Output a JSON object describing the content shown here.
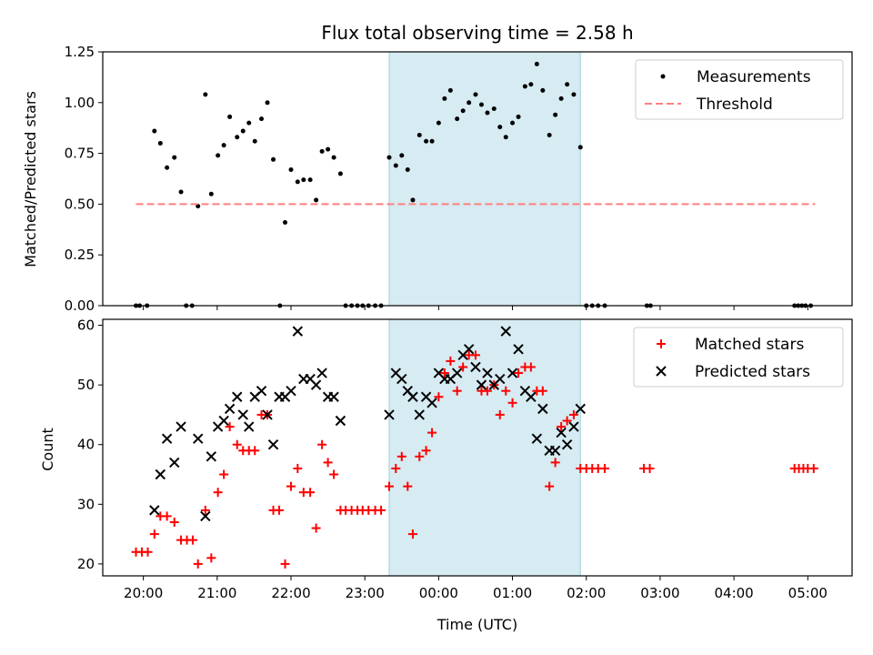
{
  "chart_data": [
    {
      "type": "scatter",
      "title": "Flux total observing time = 2.58 h",
      "xlabel": "",
      "ylabel": "Matched/Predicted stars",
      "xlim": [
        -0.55,
        9.6
      ],
      "ylim": [
        0,
        1.25
      ],
      "yticks": [
        0.0,
        0.25,
        0.5,
        0.75,
        1.0,
        1.25
      ],
      "ytick_labels": [
        "0.00",
        "0.25",
        "0.50",
        "0.75",
        "1.00",
        "1.25"
      ],
      "shaded_span": {
        "x0": 3.33,
        "x1": 5.92,
        "color": "#add8e6"
      },
      "legend": {
        "position": "upper right",
        "entries": [
          "Measurements",
          "Threshold"
        ]
      },
      "series": [
        {
          "name": "Measurements",
          "marker": "dot",
          "color": "#000000",
          "points": [
            [
              -0.1,
              0
            ],
            [
              -0.05,
              0
            ],
            [
              0.05,
              0
            ],
            [
              0.15,
              0.86
            ],
            [
              0.23,
              0.8
            ],
            [
              0.32,
              0.68
            ],
            [
              0.42,
              0.73
            ],
            [
              0.51,
              0.56
            ],
            [
              0.58,
              0
            ],
            [
              0.66,
              0
            ],
            [
              0.74,
              0.49
            ],
            [
              0.84,
              1.04
            ],
            [
              0.92,
              0.55
            ],
            [
              1.01,
              0.74
            ],
            [
              1.09,
              0.79
            ],
            [
              1.17,
              0.93
            ],
            [
              1.27,
              0.83
            ],
            [
              1.35,
              0.86
            ],
            [
              1.43,
              0.9
            ],
            [
              1.51,
              0.81
            ],
            [
              1.6,
              0.92
            ],
            [
              1.68,
              1.0
            ],
            [
              1.76,
              0.72
            ],
            [
              1.85,
              0
            ],
            [
              1.92,
              0.41
            ],
            [
              2.0,
              0.67
            ],
            [
              2.09,
              0.61
            ],
            [
              2.17,
              0.62
            ],
            [
              2.26,
              0.62
            ],
            [
              2.34,
              0.52
            ],
            [
              2.42,
              0.76
            ],
            [
              2.5,
              0.77
            ],
            [
              2.58,
              0.73
            ],
            [
              2.67,
              0.65
            ],
            [
              2.74,
              0
            ],
            [
              2.82,
              0
            ],
            [
              2.9,
              0
            ],
            [
              2.97,
              0
            ],
            [
              3.05,
              0
            ],
            [
              3.14,
              0
            ],
            [
              3.22,
              0
            ],
            [
              3.33,
              0.73
            ],
            [
              3.42,
              0.69
            ],
            [
              3.5,
              0.74
            ],
            [
              3.58,
              0.67
            ],
            [
              3.65,
              0.52
            ],
            [
              3.74,
              0.84
            ],
            [
              3.83,
              0.81
            ],
            [
              3.91,
              0.81
            ],
            [
              4.0,
              0.9
            ],
            [
              4.08,
              1.02
            ],
            [
              4.16,
              1.06
            ],
            [
              4.25,
              0.92
            ],
            [
              4.33,
              0.96
            ],
            [
              4.41,
              1.0
            ],
            [
              4.5,
              1.04
            ],
            [
              4.58,
              0.99
            ],
            [
              4.66,
              0.95
            ],
            [
              4.75,
              0.97
            ],
            [
              4.83,
              0.88
            ],
            [
              4.91,
              0.83
            ],
            [
              5.0,
              0.9
            ],
            [
              5.08,
              0.93
            ],
            [
              5.17,
              1.08
            ],
            [
              5.25,
              1.09
            ],
            [
              5.33,
              1.19
            ],
            [
              5.41,
              1.06
            ],
            [
              5.5,
              0.84
            ],
            [
              5.58,
              0.94
            ],
            [
              5.66,
              1.02
            ],
            [
              5.74,
              1.09
            ],
            [
              5.83,
              1.04
            ],
            [
              5.92,
              0.78
            ],
            [
              6.0,
              0
            ],
            [
              6.08,
              0
            ],
            [
              6.16,
              0
            ],
            [
              6.25,
              0
            ],
            [
              6.82,
              0
            ],
            [
              6.87,
              0
            ],
            [
              8.82,
              0
            ],
            [
              8.87,
              0
            ],
            [
              8.92,
              0
            ],
            [
              8.97,
              0
            ],
            [
              9.04,
              0
            ]
          ]
        },
        {
          "name": "Threshold",
          "marker": "dashed-line",
          "color": "#ff7f7f",
          "points": [
            [
              -0.1,
              0.5
            ],
            [
              9.1,
              0.5
            ]
          ]
        }
      ]
    },
    {
      "type": "scatter",
      "title": "",
      "xlabel": "Time (UTC)",
      "ylabel": "Count",
      "xlim": [
        -0.55,
        9.6
      ],
      "ylim": [
        18,
        61
      ],
      "yticks": [
        20,
        30,
        40,
        50,
        60
      ],
      "ytick_labels": [
        "20",
        "30",
        "40",
        "50",
        "60"
      ],
      "xticks": [
        0,
        1,
        2,
        3,
        4,
        5,
        6,
        7,
        8,
        9
      ],
      "xtick_labels": [
        "20:00",
        "21:00",
        "22:00",
        "23:00",
        "00:00",
        "01:00",
        "02:00",
        "03:00",
        "04:00",
        "05:00"
      ],
      "shaded_span": {
        "x0": 3.33,
        "x1": 5.92,
        "color": "#add8e6"
      },
      "legend": {
        "position": "upper right",
        "entries": [
          "Matched stars",
          "Predicted stars"
        ]
      },
      "series": [
        {
          "name": "Matched stars",
          "marker": "plus",
          "color": "#ff0000",
          "points": [
            [
              -0.1,
              22
            ],
            [
              -0.02,
              22
            ],
            [
              0.06,
              22
            ],
            [
              0.15,
              25
            ],
            [
              0.23,
              28
            ],
            [
              0.32,
              28
            ],
            [
              0.42,
              27
            ],
            [
              0.51,
              24
            ],
            [
              0.59,
              24
            ],
            [
              0.67,
              24
            ],
            [
              0.74,
              20
            ],
            [
              0.84,
              29
            ],
            [
              0.92,
              21
            ],
            [
              1.01,
              32
            ],
            [
              1.09,
              35
            ],
            [
              1.17,
              43
            ],
            [
              1.27,
              40
            ],
            [
              1.35,
              39
            ],
            [
              1.43,
              39
            ],
            [
              1.51,
              39
            ],
            [
              1.6,
              45
            ],
            [
              1.68,
              45
            ],
            [
              1.76,
              29
            ],
            [
              1.84,
              29
            ],
            [
              1.92,
              20
            ],
            [
              2.0,
              33
            ],
            [
              2.09,
              36
            ],
            [
              2.17,
              32
            ],
            [
              2.26,
              32
            ],
            [
              2.34,
              26
            ],
            [
              2.42,
              40
            ],
            [
              2.5,
              37
            ],
            [
              2.58,
              35
            ],
            [
              2.67,
              29
            ],
            [
              2.74,
              29
            ],
            [
              2.82,
              29
            ],
            [
              2.9,
              29
            ],
            [
              2.97,
              29
            ],
            [
              3.05,
              29
            ],
            [
              3.14,
              29
            ],
            [
              3.22,
              29
            ],
            [
              3.33,
              33
            ],
            [
              3.42,
              36
            ],
            [
              3.5,
              38
            ],
            [
              3.58,
              33
            ],
            [
              3.65,
              25
            ],
            [
              3.74,
              38
            ],
            [
              3.83,
              39
            ],
            [
              3.91,
              42
            ],
            [
              4.0,
              48
            ],
            [
              4.08,
              52
            ],
            [
              4.16,
              54
            ],
            [
              4.25,
              49
            ],
            [
              4.33,
              53
            ],
            [
              4.41,
              55
            ],
            [
              4.5,
              55
            ],
            [
              4.58,
              49
            ],
            [
              4.66,
              49
            ],
            [
              4.75,
              50
            ],
            [
              4.83,
              45
            ],
            [
              4.91,
              49
            ],
            [
              5.0,
              47
            ],
            [
              5.08,
              52
            ],
            [
              5.17,
              53
            ],
            [
              5.25,
              53
            ],
            [
              5.33,
              49
            ],
            [
              5.41,
              49
            ],
            [
              5.5,
              33
            ],
            [
              5.58,
              37
            ],
            [
              5.66,
              43
            ],
            [
              5.74,
              44
            ],
            [
              5.83,
              45
            ],
            [
              5.92,
              36
            ],
            [
              6.0,
              36
            ],
            [
              6.08,
              36
            ],
            [
              6.16,
              36
            ],
            [
              6.25,
              36
            ],
            [
              6.78,
              36
            ],
            [
              6.86,
              36
            ],
            [
              8.82,
              36
            ],
            [
              8.88,
              36
            ],
            [
              8.94,
              36
            ],
            [
              9.0,
              36
            ],
            [
              9.08,
              36
            ]
          ]
        },
        {
          "name": "Predicted stars",
          "marker": "x",
          "color": "#000000",
          "points": [
            [
              0.15,
              29
            ],
            [
              0.23,
              35
            ],
            [
              0.32,
              41
            ],
            [
              0.42,
              37
            ],
            [
              0.51,
              43
            ],
            [
              0.74,
              41
            ],
            [
              0.84,
              28
            ],
            [
              0.92,
              38
            ],
            [
              1.01,
              43
            ],
            [
              1.09,
              44
            ],
            [
              1.17,
              46
            ],
            [
              1.27,
              48
            ],
            [
              1.35,
              45
            ],
            [
              1.43,
              43
            ],
            [
              1.51,
              48
            ],
            [
              1.6,
              49
            ],
            [
              1.68,
              45
            ],
            [
              1.76,
              40
            ],
            [
              1.84,
              48
            ],
            [
              1.92,
              48
            ],
            [
              2.0,
              49
            ],
            [
              2.09,
              59
            ],
            [
              2.17,
              51
            ],
            [
              2.26,
              51
            ],
            [
              2.34,
              50
            ],
            [
              2.42,
              52
            ],
            [
              2.5,
              48
            ],
            [
              2.58,
              48
            ],
            [
              2.67,
              44
            ],
            [
              3.33,
              45
            ],
            [
              3.42,
              52
            ],
            [
              3.5,
              51
            ],
            [
              3.58,
              49
            ],
            [
              3.65,
              48
            ],
            [
              3.74,
              45
            ],
            [
              3.83,
              48
            ],
            [
              3.91,
              47
            ],
            [
              4.0,
              52
            ],
            [
              4.08,
              51
            ],
            [
              4.16,
              51
            ],
            [
              4.25,
              52
            ],
            [
              4.33,
              55
            ],
            [
              4.41,
              56
            ],
            [
              4.5,
              53
            ],
            [
              4.58,
              50
            ],
            [
              4.66,
              52
            ],
            [
              4.75,
              50
            ],
            [
              4.83,
              51
            ],
            [
              4.91,
              59
            ],
            [
              5.0,
              52
            ],
            [
              5.08,
              56
            ],
            [
              5.17,
              49
            ],
            [
              5.25,
              48
            ],
            [
              5.33,
              41
            ],
            [
              5.41,
              46
            ],
            [
              5.5,
              39
            ],
            [
              5.58,
              39
            ],
            [
              5.66,
              42
            ],
            [
              5.74,
              40
            ],
            [
              5.83,
              43
            ],
            [
              5.92,
              46
            ]
          ]
        }
      ]
    }
  ]
}
